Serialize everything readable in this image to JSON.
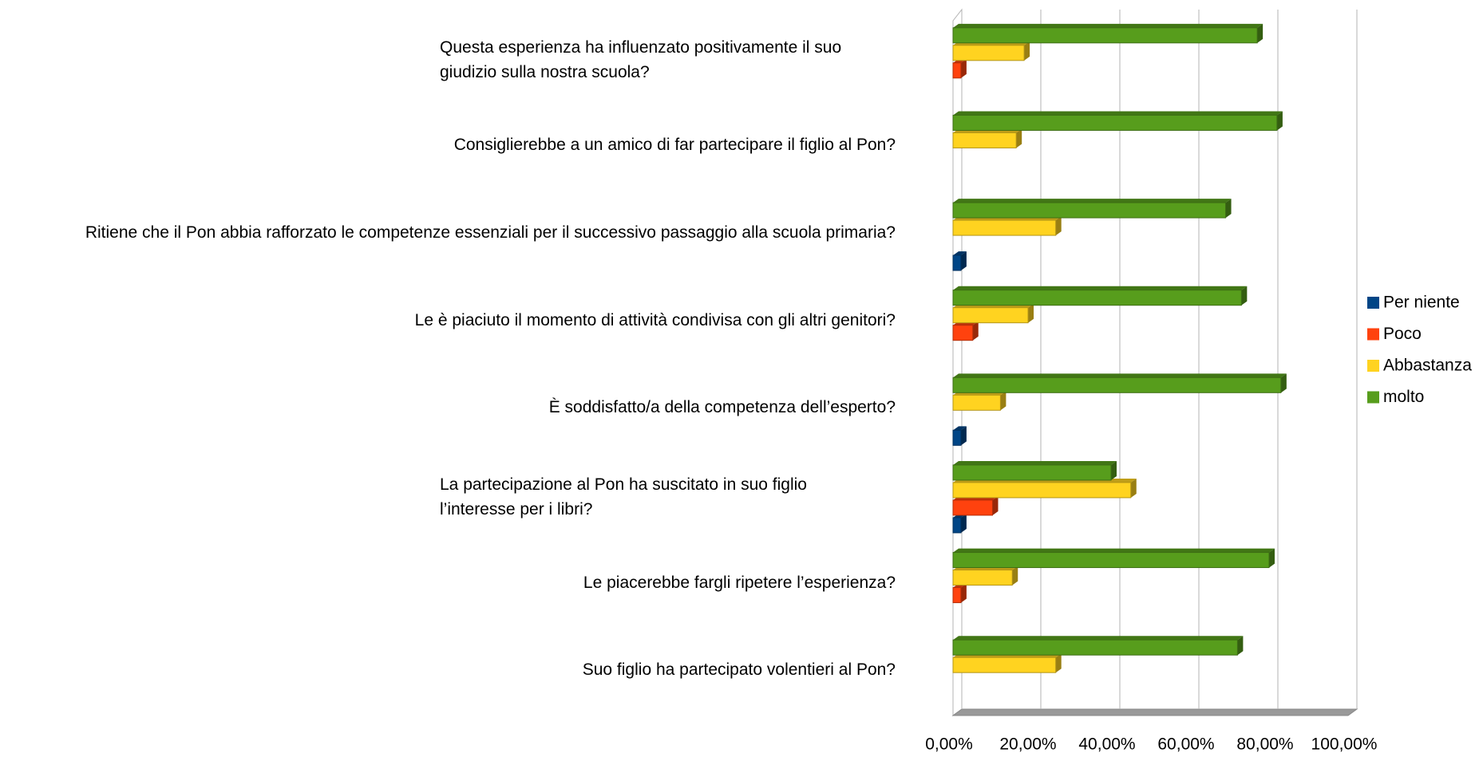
{
  "chart_data": {
    "type": "bar",
    "orientation": "horizontal",
    "categories": [
      "Questa esperienza ha influenzato positivamente il suo giudizio sulla nostra scuola?",
      "Consiglierebbe a un amico di far partecipare il figlio al Pon?",
      "Ritiene che il Pon abbia rafforzato le competenze essenziali  per il successivo passaggio alla scuola primaria?",
      "Le è piaciuto il momento di attività condivisa con gli altri genitori?",
      "È soddisfatto/a della competenza dell’esperto?",
      "La  partecipazione al Pon ha suscitato in suo figlio l’interesse per i libri?",
      "Le piacerebbe fargli ripetere l’esperienza?",
      "Suo figlio ha partecipato volentieri al Pon?"
    ],
    "series": [
      {
        "name": "Per niente",
        "color": "#004586",
        "values": [
          0,
          0,
          2,
          0,
          2,
          2,
          0,
          0
        ]
      },
      {
        "name": "Poco",
        "color": "#ff420e",
        "values": [
          2,
          0,
          0,
          5,
          0,
          10,
          2,
          0
        ]
      },
      {
        "name": "Abbastanza",
        "color": "#ffd320",
        "values": [
          18,
          16,
          26,
          19,
          12,
          45,
          15,
          26
        ]
      },
      {
        "name": "molto",
        "color": "#579d1c",
        "values": [
          77,
          82,
          69,
          73,
          83,
          40,
          80,
          72
        ]
      }
    ],
    "xlim": [
      0,
      100
    ],
    "xticks": [
      {
        "value": 0,
        "label": "0,00%"
      },
      {
        "value": 20,
        "label": "20,00%"
      },
      {
        "value": 40,
        "label": "40,00%"
      },
      {
        "value": 60,
        "label": "60,00%"
      },
      {
        "value": 80,
        "label": "80,00%"
      },
      {
        "value": 100,
        "label": "100,00%"
      }
    ],
    "grid": true,
    "legend": "right"
  }
}
